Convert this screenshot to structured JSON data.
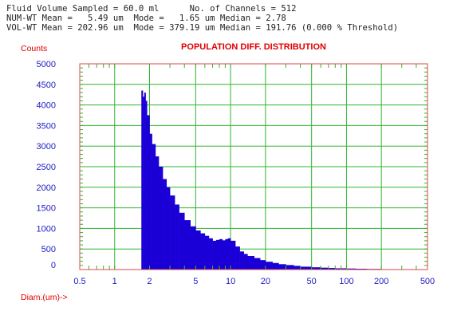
{
  "header": {
    "line1": "Fluid Volume Sampled = 60.0 ml      No. of Channels = 512",
    "line2": "NUM-WT Mean =   5.49 um  Mode =   1.65 um Median = 2.78",
    "line3": "VOL-WT Mean = 202.96 um  Mode = 379.19 um Median = 191.76 (0.000 % Threshold)"
  },
  "colors": {
    "bars": "#1a00d6",
    "grid": "#2fb52f",
    "frame": "#d94a4a",
    "title": "#e00000",
    "axis_labels": "#2020c0"
  },
  "chart_data": {
    "type": "bar",
    "title": "POPULATION DIFF. DISTRIBUTION",
    "ylabel": "Counts",
    "xlabel": "Diam.(um)->",
    "xscale": "log",
    "xlim": [
      0.5,
      500
    ],
    "ylim": [
      0,
      5000
    ],
    "grid": true,
    "yticks": [
      0,
      500,
      1000,
      1500,
      2000,
      2500,
      3000,
      3500,
      4000,
      4500,
      5000
    ],
    "xticks": [
      0.5,
      1,
      2,
      5,
      10,
      20,
      50,
      100,
      200,
      500
    ],
    "x": [
      1.7,
      1.75,
      1.8,
      1.85,
      1.9,
      2.0,
      2.1,
      2.25,
      2.4,
      2.6,
      2.8,
      3.0,
      3.3,
      3.6,
      4.0,
      4.5,
      5.0,
      5.5,
      6.0,
      6.5,
      7.0,
      7.5,
      8.0,
      8.5,
      9.0,
      9.5,
      10.0,
      11.0,
      12.0,
      13.0,
      14.0,
      16.0,
      18.0,
      20.0,
      23.0,
      26.0,
      30.0,
      35.0,
      40.0,
      50.0,
      60.0,
      70.0,
      80.0,
      100.0,
      120.0,
      150.0,
      200.0,
      250.0,
      300.0,
      380.0
    ],
    "values": [
      4350,
      4200,
      4300,
      4100,
      3750,
      3300,
      3050,
      2750,
      2500,
      2200,
      2000,
      1800,
      1580,
      1380,
      1200,
      1050,
      950,
      880,
      820,
      760,
      700,
      720,
      740,
      710,
      740,
      760,
      700,
      560,
      440,
      380,
      330,
      280,
      230,
      190,
      160,
      130,
      110,
      90,
      70,
      55,
      45,
      38,
      30,
      25,
      20,
      15,
      10,
      8,
      5,
      3
    ]
  }
}
